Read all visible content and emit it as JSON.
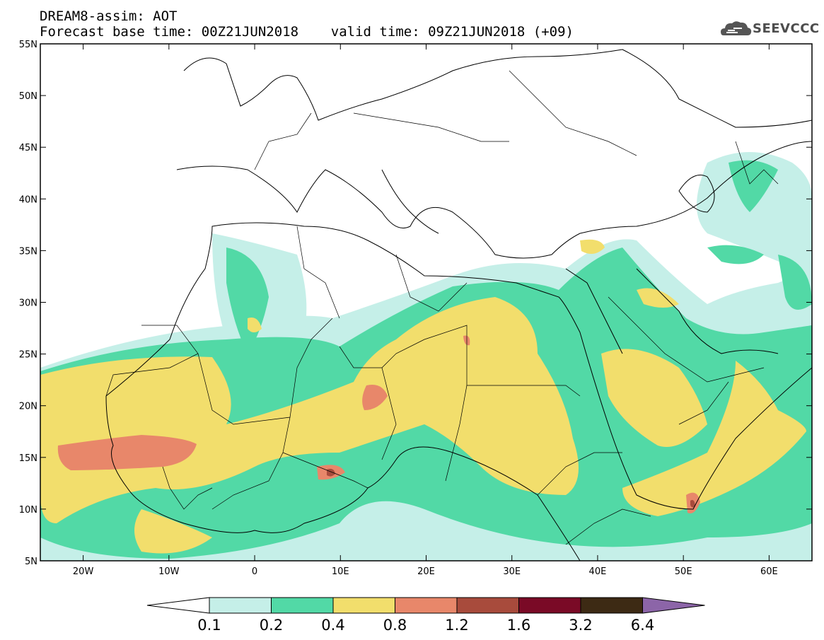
{
  "title": {
    "line1": "DREAM8-assim: AOT",
    "line2": "Forecast base time: 00Z21JUN2018    valid time: 09Z21JUN2018 (+09)"
  },
  "logo": {
    "text": "SEEVCCC",
    "icon": "cloud-icon"
  },
  "map": {
    "lon_range": [
      -25,
      65
    ],
    "lat_range": [
      5,
      55
    ],
    "lat_ticks": [
      {
        "value": 55,
        "label": "55N"
      },
      {
        "value": 50,
        "label": "50N"
      },
      {
        "value": 45,
        "label": "45N"
      },
      {
        "value": 40,
        "label": "40N"
      },
      {
        "value": 35,
        "label": "35N"
      },
      {
        "value": 30,
        "label": "30N"
      },
      {
        "value": 25,
        "label": "25N"
      },
      {
        "value": 20,
        "label": "20N"
      },
      {
        "value": 15,
        "label": "15N"
      },
      {
        "value": 10,
        "label": "10N"
      },
      {
        "value": 5,
        "label": "5N"
      }
    ],
    "lon_ticks": [
      {
        "value": -20,
        "label": "20W"
      },
      {
        "value": -10,
        "label": "10W"
      },
      {
        "value": 0,
        "label": "0"
      },
      {
        "value": 10,
        "label": "10E"
      },
      {
        "value": 20,
        "label": "20E"
      },
      {
        "value": 30,
        "label": "30E"
      },
      {
        "value": 40,
        "label": "40E"
      },
      {
        "value": 50,
        "label": "50E"
      },
      {
        "value": 60,
        "label": "60E"
      }
    ]
  },
  "colorbar": {
    "colors": [
      "#ffffff",
      "#c5efe8",
      "#52d9a6",
      "#f2de6c",
      "#e8876a",
      "#a84b3c",
      "#7a0a26",
      "#3d2a14",
      "#8c65a8"
    ],
    "labels": [
      "0.1",
      "0.2",
      "0.4",
      "0.8",
      "1.2",
      "1.6",
      "3.2",
      "6.4"
    ]
  }
}
